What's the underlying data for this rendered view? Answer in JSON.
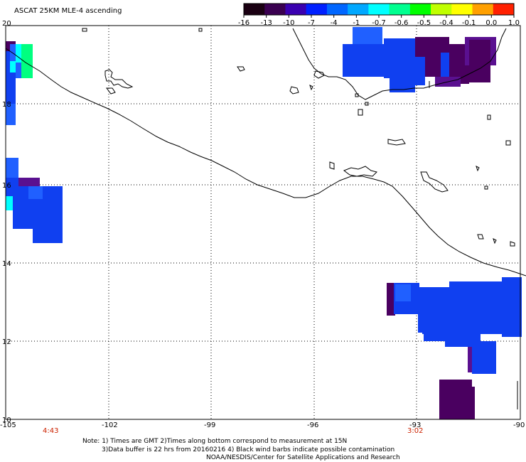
{
  "title": "ASCAT 25KM MLE-4 ascending",
  "colorbar": {
    "labels": [
      "-16",
      "-13",
      "-10",
      "-7",
      "-4",
      "-1",
      "-0.7",
      "-0.6",
      "-0.5",
      "-0.4",
      "-0.1",
      "0.0",
      "1.0"
    ],
    "colors": [
      "#1a0012",
      "#3a0050",
      "#3a00b0",
      "#0020ff",
      "#0066ff",
      "#00a8ff",
      "#00ffff",
      "#00ff90",
      "#00ff00",
      "#c0ff00",
      "#ffff00",
      "#ffa000",
      "#ff2000"
    ]
  },
  "lat_labels": [
    "20",
    "18",
    "16",
    "14",
    "12",
    "10"
  ],
  "lon_labels": [
    "-105",
    "-102",
    "-99",
    "-96",
    "-93",
    "-90"
  ],
  "time_labels": [
    "4:43",
    "3:02"
  ],
  "notes": [
    "Note: 1) Times are GMT 2)Times along bottom correspond to measurement at 15N",
    "3)Data buffer is 22 hrs from 20160216 4) Black wind barbs indicate possible contamination",
    "NOAA/NESDIS/Center for Satellite Applications and Research"
  ],
  "colors": {
    "deep": "#4a0060",
    "blue": "#1040f0",
    "blue2": "#2060ff",
    "purple": "#5a1090",
    "cyan": "#00ffff",
    "green": "#00ff80"
  }
}
